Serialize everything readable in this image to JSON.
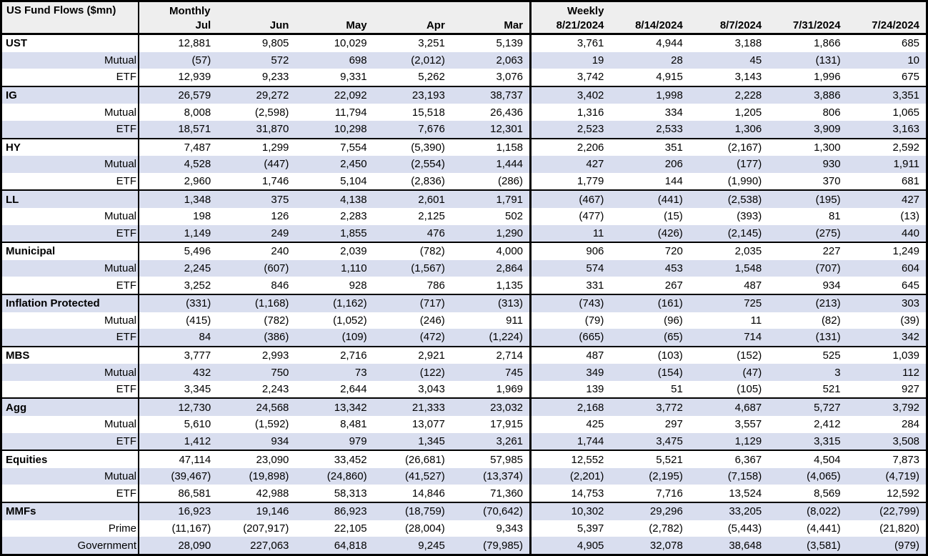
{
  "table": {
    "title": "US Fund Flows ($mn)",
    "monthly_label": "Monthly",
    "weekly_label": "Weekly",
    "monthly_columns": [
      "Jul",
      "Jun",
      "May",
      "Apr",
      "Mar"
    ],
    "weekly_columns": [
      "8/21/2024",
      "8/14/2024",
      "8/7/2024",
      "7/31/2024",
      "7/24/2024"
    ],
    "colors": {
      "row_shade": "#d9deef",
      "header_bg": "#eeeeee",
      "border": "#000000",
      "text": "#000000"
    },
    "rows": [
      {
        "label": "UST",
        "section": true,
        "monthly": [
          "12,881",
          "9,805",
          "10,029",
          "3,251",
          "5,139"
        ],
        "weekly": [
          "3,761",
          "4,944",
          "3,188",
          "1,866",
          "685"
        ]
      },
      {
        "label": "Mutual",
        "section": false,
        "monthly": [
          "(57)",
          "572",
          "698",
          "(2,012)",
          "2,063"
        ],
        "weekly": [
          "19",
          "28",
          "45",
          "(131)",
          "10"
        ]
      },
      {
        "label": "ETF",
        "section": false,
        "monthly": [
          "12,939",
          "9,233",
          "9,331",
          "5,262",
          "3,076"
        ],
        "weekly": [
          "3,742",
          "4,915",
          "3,143",
          "1,996",
          "675"
        ]
      },
      {
        "label": "IG",
        "section": true,
        "monthly": [
          "26,579",
          "29,272",
          "22,092",
          "23,193",
          "38,737"
        ],
        "weekly": [
          "3,402",
          "1,998",
          "2,228",
          "3,886",
          "3,351"
        ]
      },
      {
        "label": "Mutual",
        "section": false,
        "monthly": [
          "8,008",
          "(2,598)",
          "11,794",
          "15,518",
          "26,436"
        ],
        "weekly": [
          "1,316",
          "334",
          "1,205",
          "806",
          "1,065"
        ]
      },
      {
        "label": "ETF",
        "section": false,
        "monthly": [
          "18,571",
          "31,870",
          "10,298",
          "7,676",
          "12,301"
        ],
        "weekly": [
          "2,523",
          "2,533",
          "1,306",
          "3,909",
          "3,163"
        ]
      },
      {
        "label": "HY",
        "section": true,
        "monthly": [
          "7,487",
          "1,299",
          "7,554",
          "(5,390)",
          "1,158"
        ],
        "weekly": [
          "2,206",
          "351",
          "(2,167)",
          "1,300",
          "2,592"
        ]
      },
      {
        "label": "Mutual",
        "section": false,
        "monthly": [
          "4,528",
          "(447)",
          "2,450",
          "(2,554)",
          "1,444"
        ],
        "weekly": [
          "427",
          "206",
          "(177)",
          "930",
          "1,911"
        ]
      },
      {
        "label": "ETF",
        "section": false,
        "monthly": [
          "2,960",
          "1,746",
          "5,104",
          "(2,836)",
          "(286)"
        ],
        "weekly": [
          "1,779",
          "144",
          "(1,990)",
          "370",
          "681"
        ]
      },
      {
        "label": "LL",
        "section": true,
        "monthly": [
          "1,348",
          "375",
          "4,138",
          "2,601",
          "1,791"
        ],
        "weekly": [
          "(467)",
          "(441)",
          "(2,538)",
          "(195)",
          "427"
        ]
      },
      {
        "label": "Mutual",
        "section": false,
        "monthly": [
          "198",
          "126",
          "2,283",
          "2,125",
          "502"
        ],
        "weekly": [
          "(477)",
          "(15)",
          "(393)",
          "81",
          "(13)"
        ]
      },
      {
        "label": "ETF",
        "section": false,
        "monthly": [
          "1,149",
          "249",
          "1,855",
          "476",
          "1,290"
        ],
        "weekly": [
          "11",
          "(426)",
          "(2,145)",
          "(275)",
          "440"
        ]
      },
      {
        "label": "Municipal",
        "section": true,
        "monthly": [
          "5,496",
          "240",
          "2,039",
          "(782)",
          "4,000"
        ],
        "weekly": [
          "906",
          "720",
          "2,035",
          "227",
          "1,249"
        ]
      },
      {
        "label": "Mutual",
        "section": false,
        "monthly": [
          "2,245",
          "(607)",
          "1,110",
          "(1,567)",
          "2,864"
        ],
        "weekly": [
          "574",
          "453",
          "1,548",
          "(707)",
          "604"
        ]
      },
      {
        "label": "ETF",
        "section": false,
        "monthly": [
          "3,252",
          "846",
          "928",
          "786",
          "1,135"
        ],
        "weekly": [
          "331",
          "267",
          "487",
          "934",
          "645"
        ]
      },
      {
        "label": "Inflation Protected",
        "section": true,
        "monthly": [
          "(331)",
          "(1,168)",
          "(1,162)",
          "(717)",
          "(313)"
        ],
        "weekly": [
          "(743)",
          "(161)",
          "725",
          "(213)",
          "303"
        ]
      },
      {
        "label": "Mutual",
        "section": false,
        "monthly": [
          "(415)",
          "(782)",
          "(1,052)",
          "(246)",
          "911"
        ],
        "weekly": [
          "(79)",
          "(96)",
          "11",
          "(82)",
          "(39)"
        ]
      },
      {
        "label": "ETF",
        "section": false,
        "monthly": [
          "84",
          "(386)",
          "(109)",
          "(472)",
          "(1,224)"
        ],
        "weekly": [
          "(665)",
          "(65)",
          "714",
          "(131)",
          "342"
        ]
      },
      {
        "label": "MBS",
        "section": true,
        "monthly": [
          "3,777",
          "2,993",
          "2,716",
          "2,921",
          "2,714"
        ],
        "weekly": [
          "487",
          "(103)",
          "(152)",
          "525",
          "1,039"
        ]
      },
      {
        "label": "Mutual",
        "section": false,
        "monthly": [
          "432",
          "750",
          "73",
          "(122)",
          "745"
        ],
        "weekly": [
          "349",
          "(154)",
          "(47)",
          "3",
          "112"
        ]
      },
      {
        "label": "ETF",
        "section": false,
        "monthly": [
          "3,345",
          "2,243",
          "2,644",
          "3,043",
          "1,969"
        ],
        "weekly": [
          "139",
          "51",
          "(105)",
          "521",
          "927"
        ]
      },
      {
        "label": "Agg",
        "section": true,
        "monthly": [
          "12,730",
          "24,568",
          "13,342",
          "21,333",
          "23,032"
        ],
        "weekly": [
          "2,168",
          "3,772",
          "4,687",
          "5,727",
          "3,792"
        ]
      },
      {
        "label": "Mutual",
        "section": false,
        "monthly": [
          "5,610",
          "(1,592)",
          "8,481",
          "13,077",
          "17,915"
        ],
        "weekly": [
          "425",
          "297",
          "3,557",
          "2,412",
          "284"
        ]
      },
      {
        "label": "ETF",
        "section": false,
        "monthly": [
          "1,412",
          "934",
          "979",
          "1,345",
          "3,261"
        ],
        "weekly": [
          "1,744",
          "3,475",
          "1,129",
          "3,315",
          "3,508"
        ]
      },
      {
        "label": "Equities",
        "section": true,
        "monthly": [
          "47,114",
          "23,090",
          "33,452",
          "(26,681)",
          "57,985"
        ],
        "weekly": [
          "12,552",
          "5,521",
          "6,367",
          "4,504",
          "7,873"
        ]
      },
      {
        "label": "Mutual",
        "section": false,
        "monthly": [
          "(39,467)",
          "(19,898)",
          "(24,860)",
          "(41,527)",
          "(13,374)"
        ],
        "weekly": [
          "(2,201)",
          "(2,195)",
          "(7,158)",
          "(4,065)",
          "(4,719)"
        ]
      },
      {
        "label": "ETF",
        "section": false,
        "monthly": [
          "86,581",
          "42,988",
          "58,313",
          "14,846",
          "71,360"
        ],
        "weekly": [
          "14,753",
          "7,716",
          "13,524",
          "8,569",
          "12,592"
        ]
      },
      {
        "label": "MMFs",
        "section": true,
        "monthly": [
          "16,923",
          "19,146",
          "86,923",
          "(18,759)",
          "(70,642)"
        ],
        "weekly": [
          "10,302",
          "29,296",
          "33,205",
          "(8,022)",
          "(22,799)"
        ]
      },
      {
        "label": "Prime",
        "section": false,
        "monthly": [
          "(11,167)",
          "(207,917)",
          "22,105",
          "(28,004)",
          "9,343"
        ],
        "weekly": [
          "5,397",
          "(2,782)",
          "(5,443)",
          "(4,441)",
          "(21,820)"
        ]
      },
      {
        "label": "Government",
        "section": false,
        "monthly": [
          "28,090",
          "227,063",
          "64,818",
          "9,245",
          "(79,985)"
        ],
        "weekly": [
          "4,905",
          "32,078",
          "38,648",
          "(3,581)",
          "(979)"
        ]
      }
    ]
  }
}
